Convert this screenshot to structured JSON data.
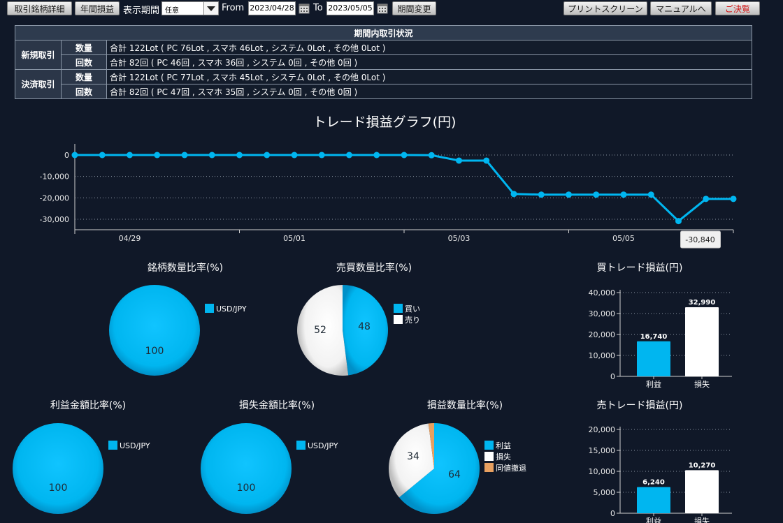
{
  "toolbar": {
    "detail_btn": "取引銘柄詳細",
    "annual_btn": "年間損益",
    "period_label": "表示期間",
    "period_value": "任意",
    "from_label": "From",
    "from_date": "2023/04/28",
    "to_label": "To",
    "to_date": "2023/05/05",
    "change_btn": "期間変更",
    "print_btn": "プリントスクリーン",
    "manual_btn": "マニュアルへ",
    "close_btn": "ご決覧"
  },
  "summary": {
    "title": "期間内取引状況",
    "groups": [
      {
        "label": "新規取引",
        "rows": [
          {
            "label": "数量",
            "value": "合計 122Lot ( PC 76Lot , スマホ 46Lot , システム 0Lot , その他 0Lot )"
          },
          {
            "label": "回数",
            "value": "合計 82回 ( PC 46回 , スマホ 36回 , システム 0回 , その他 0回 )"
          }
        ]
      },
      {
        "label": "決済取引",
        "rows": [
          {
            "label": "数量",
            "value": "合計 122Lot ( PC 77Lot , スマホ 45Lot , システム 0Lot , その他 0Lot )"
          },
          {
            "label": "回数",
            "value": "合計 82回 ( PC 47回 , スマホ 35回 , システム 0回 , その他 0回 )"
          }
        ]
      }
    ]
  },
  "colors": {
    "cyan": "#00b6f0",
    "white": "#ffffff",
    "orange": "#e8a060",
    "background": "#101828"
  },
  "chart_data": [
    {
      "id": "pl_line",
      "type": "line",
      "title": "トレード損益グラフ(円)",
      "x_ticks": [
        "04/29",
        "05/01",
        "05/03",
        "05/05"
      ],
      "y_ticks": [
        "0",
        "-10,000",
        "-20,000",
        "-30,000"
      ],
      "ylim": [
        -35000,
        2000
      ],
      "grid": true,
      "values": [
        0,
        0,
        0,
        0,
        0,
        0,
        0,
        0,
        0,
        0,
        0,
        0,
        0,
        -100,
        -2600,
        -2600,
        -18200,
        -18500,
        -18500,
        -18500,
        -18500,
        -18500,
        -30840,
        -20500,
        -20500
      ],
      "tooltip": "-30,840"
    },
    {
      "id": "symbol_qty",
      "type": "pie",
      "title": "銘柄数量比率(%)",
      "slices": [
        {
          "label": "USD/JPY",
          "value": 100,
          "color": "#00b6f0"
        }
      ]
    },
    {
      "id": "buysell_qty",
      "type": "pie",
      "title": "売買数量比率(%)",
      "slices": [
        {
          "label": "買い",
          "value": 48,
          "color": "#00b6f0"
        },
        {
          "label": "売り",
          "value": 52,
          "color": "#ffffff"
        }
      ]
    },
    {
      "id": "buy_trade_pl",
      "type": "bar",
      "title": "買トレード損益(円)",
      "categories": [
        "利益",
        "損失"
      ],
      "values": [
        16740,
        32990
      ],
      "value_labels": [
        "16,740",
        "32,990"
      ],
      "colors": [
        "#00b6f0",
        "#ffffff"
      ],
      "y_ticks": [
        "40,000",
        "30,000",
        "20,000",
        "10,000",
        "0"
      ],
      "ylim": [
        0,
        40000
      ]
    },
    {
      "id": "profit_amount",
      "type": "pie",
      "title": "利益金額比率(%)",
      "slices": [
        {
          "label": "USD/JPY",
          "value": 100,
          "color": "#00b6f0"
        }
      ]
    },
    {
      "id": "loss_amount",
      "type": "pie",
      "title": "損失金額比率(%)",
      "slices": [
        {
          "label": "USD/JPY",
          "value": 100,
          "color": "#00b6f0"
        }
      ]
    },
    {
      "id": "pl_count",
      "type": "pie",
      "title": "損益数量比率(%)",
      "slices": [
        {
          "label": "利益",
          "value": 64,
          "color": "#00b6f0"
        },
        {
          "label": "損失",
          "value": 34,
          "color": "#ffffff"
        },
        {
          "label": "同値撤退",
          "value": 2,
          "color": "#e8a060"
        }
      ]
    },
    {
      "id": "sell_trade_pl",
      "type": "bar",
      "title": "売トレード損益(円)",
      "categories": [
        "利益",
        "損失"
      ],
      "values": [
        6240,
        10270
      ],
      "value_labels": [
        "6,240",
        "10,270"
      ],
      "colors": [
        "#00b6f0",
        "#ffffff"
      ],
      "y_ticks": [
        "20,000",
        "15,000",
        "10,000",
        "5,000",
        "0"
      ],
      "ylim": [
        0,
        20000
      ]
    }
  ]
}
